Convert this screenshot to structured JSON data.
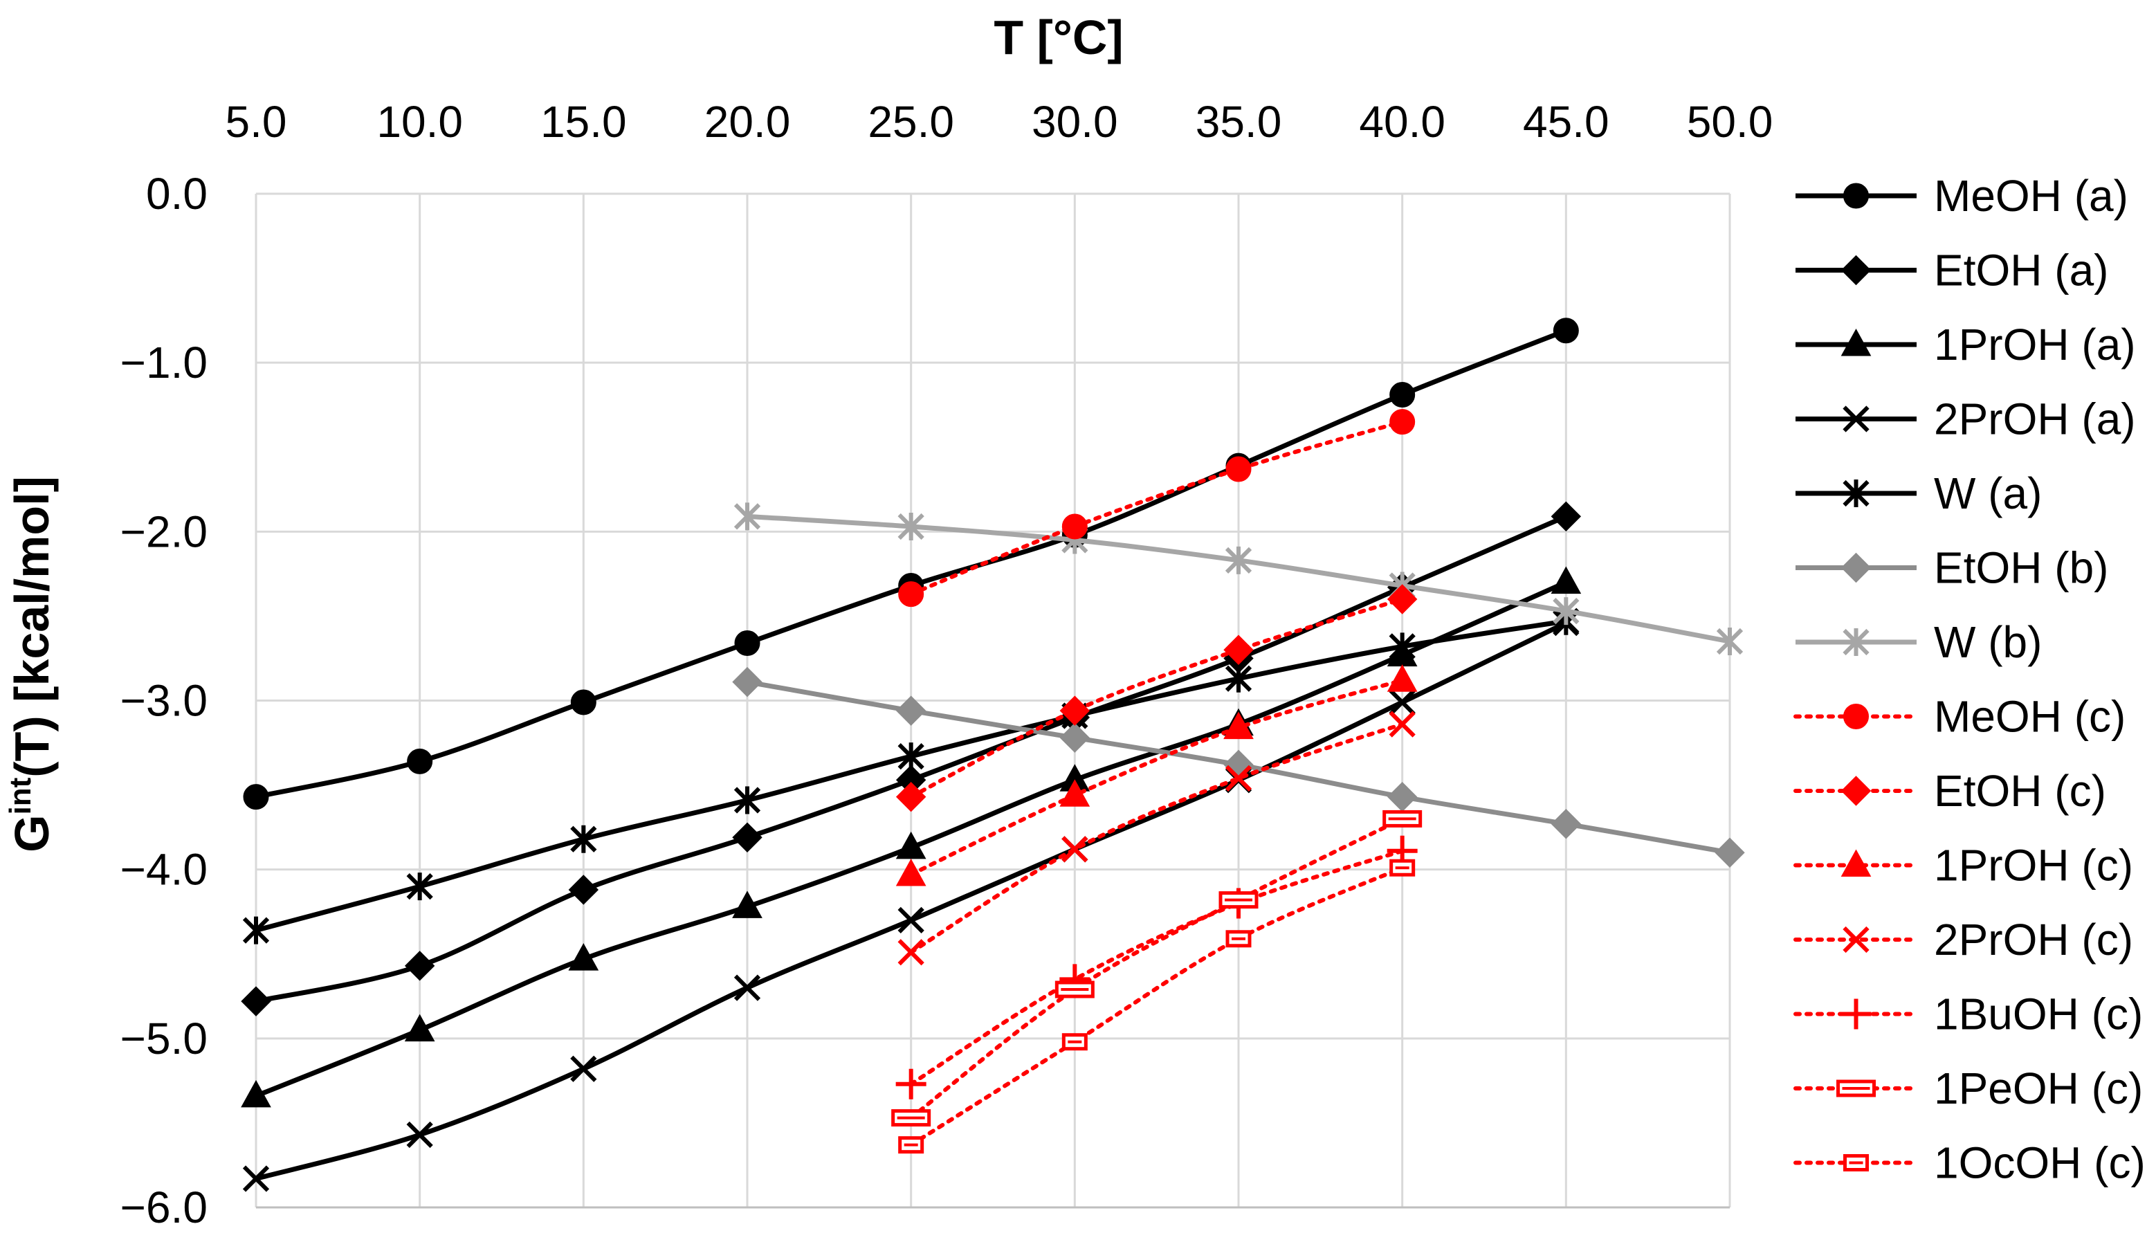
{
  "chart_data": {
    "type": "line",
    "title": "",
    "xlabel": "T [°C]",
    "xlabel_position": "top",
    "ylabel_main": "G",
    "ylabel_sup": "int",
    "ylabel_rest": "(T) [kcal/mol]",
    "xlim": [
      5,
      50
    ],
    "ylim": [
      -6,
      0
    ],
    "x_ticks": [
      "5.0",
      "10.0",
      "15.0",
      "20.0",
      "25.0",
      "30.0",
      "35.0",
      "40.0",
      "45.0",
      "50.0"
    ],
    "y_ticks": [
      "0.0",
      "−1.0",
      "−2.0",
      "−3.0",
      "−4.0",
      "−5.0",
      "−6.0"
    ],
    "grid": true,
    "legend_position": "right",
    "series": [
      {
        "name": "MeOH (a)",
        "color": "#000000",
        "dash": "solid",
        "marker": "circle",
        "x": [
          5,
          10,
          15,
          20,
          25,
          30,
          35,
          40,
          45
        ],
        "y": [
          -3.57,
          -3.36,
          -3.01,
          -2.66,
          -2.32,
          -2.02,
          -1.61,
          -1.19,
          -0.81
        ]
      },
      {
        "name": "EtOH (a)",
        "color": "#000000",
        "dash": "solid",
        "marker": "diamond",
        "x": [
          5,
          10,
          15,
          20,
          25,
          30,
          35,
          40,
          45
        ],
        "y": [
          -4.78,
          -4.57,
          -4.12,
          -3.81,
          -3.47,
          -3.1,
          -2.75,
          -2.33,
          -1.91
        ]
      },
      {
        "name": "1PrOH (a)",
        "color": "#000000",
        "dash": "solid",
        "marker": "triangle",
        "x": [
          5,
          10,
          15,
          20,
          25,
          30,
          35,
          40,
          45
        ],
        "y": [
          -5.34,
          -4.95,
          -4.53,
          -4.22,
          -3.87,
          -3.47,
          -3.14,
          -2.73,
          -2.3
        ]
      },
      {
        "name": "2PrOH (a)",
        "color": "#000000",
        "dash": "solid",
        "marker": "x",
        "x": [
          5,
          10,
          15,
          20,
          25,
          30,
          35,
          40,
          45
        ],
        "y": [
          -5.83,
          -5.57,
          -5.18,
          -4.7,
          -4.3,
          -3.88,
          -3.47,
          -3.01,
          -2.54
        ]
      },
      {
        "name": "W (a)",
        "color": "#000000",
        "dash": "solid",
        "marker": "star",
        "x": [
          5,
          10,
          15,
          20,
          25,
          30,
          35,
          40,
          45
        ],
        "y": [
          -4.36,
          -4.1,
          -3.82,
          -3.59,
          -3.33,
          -3.09,
          -2.87,
          -2.68,
          -2.53
        ]
      },
      {
        "name": "EtOH (b)",
        "color": "#8c8c8c",
        "dash": "solid",
        "marker": "diamond",
        "x": [
          20,
          25,
          30,
          35,
          40,
          45,
          50
        ],
        "y": [
          -2.89,
          -3.06,
          -3.22,
          -3.38,
          -3.57,
          -3.73,
          -3.9
        ]
      },
      {
        "name": "W (b)",
        "color": "#a6a6a6",
        "dash": "solid",
        "marker": "star",
        "x": [
          20,
          25,
          30,
          35,
          40,
          45,
          50
        ],
        "y": [
          -1.91,
          -1.97,
          -2.05,
          -2.17,
          -2.32,
          -2.47,
          -2.65
        ]
      },
      {
        "name": "MeOH (c)",
        "color": "#ff0000",
        "dash": "dotted",
        "marker": "circle",
        "x": [
          25,
          30,
          35,
          40
        ],
        "y": [
          -2.37,
          -1.97,
          -1.63,
          -1.35
        ]
      },
      {
        "name": "EtOH (c)",
        "color": "#ff0000",
        "dash": "dotted",
        "marker": "diamond",
        "x": [
          25,
          30,
          35,
          40
        ],
        "y": [
          -3.57,
          -3.06,
          -2.7,
          -2.4
        ]
      },
      {
        "name": "1PrOH (c)",
        "color": "#ff0000",
        "dash": "dotted",
        "marker": "triangle",
        "x": [
          25,
          30,
          35,
          40
        ],
        "y": [
          -4.03,
          -3.56,
          -3.16,
          -2.88
        ]
      },
      {
        "name": "2PrOH (c)",
        "color": "#ff0000",
        "dash": "dotted",
        "marker": "x",
        "x": [
          25,
          30,
          35,
          40
        ],
        "y": [
          -4.49,
          -3.88,
          -3.46,
          -3.14
        ]
      },
      {
        "name": "1BuOH (c)",
        "color": "#ff0000",
        "dash": "dotted",
        "marker": "plus",
        "x": [
          25,
          30,
          35,
          40
        ],
        "y": [
          -5.27,
          -4.65,
          -4.2,
          -3.89
        ]
      },
      {
        "name": "1PeOH (c)",
        "color": "#ff0000",
        "dash": "dotted",
        "marker": "rect",
        "x": [
          25,
          30,
          35,
          40
        ],
        "y": [
          -5.47,
          -4.71,
          -4.18,
          -3.7
        ]
      },
      {
        "name": "1OcOH (c)",
        "color": "#ff0000",
        "dash": "dotted",
        "marker": "rectsmall",
        "x": [
          25,
          30,
          35,
          40
        ],
        "y": [
          -5.63,
          -5.02,
          -4.41,
          -3.99
        ]
      }
    ]
  }
}
